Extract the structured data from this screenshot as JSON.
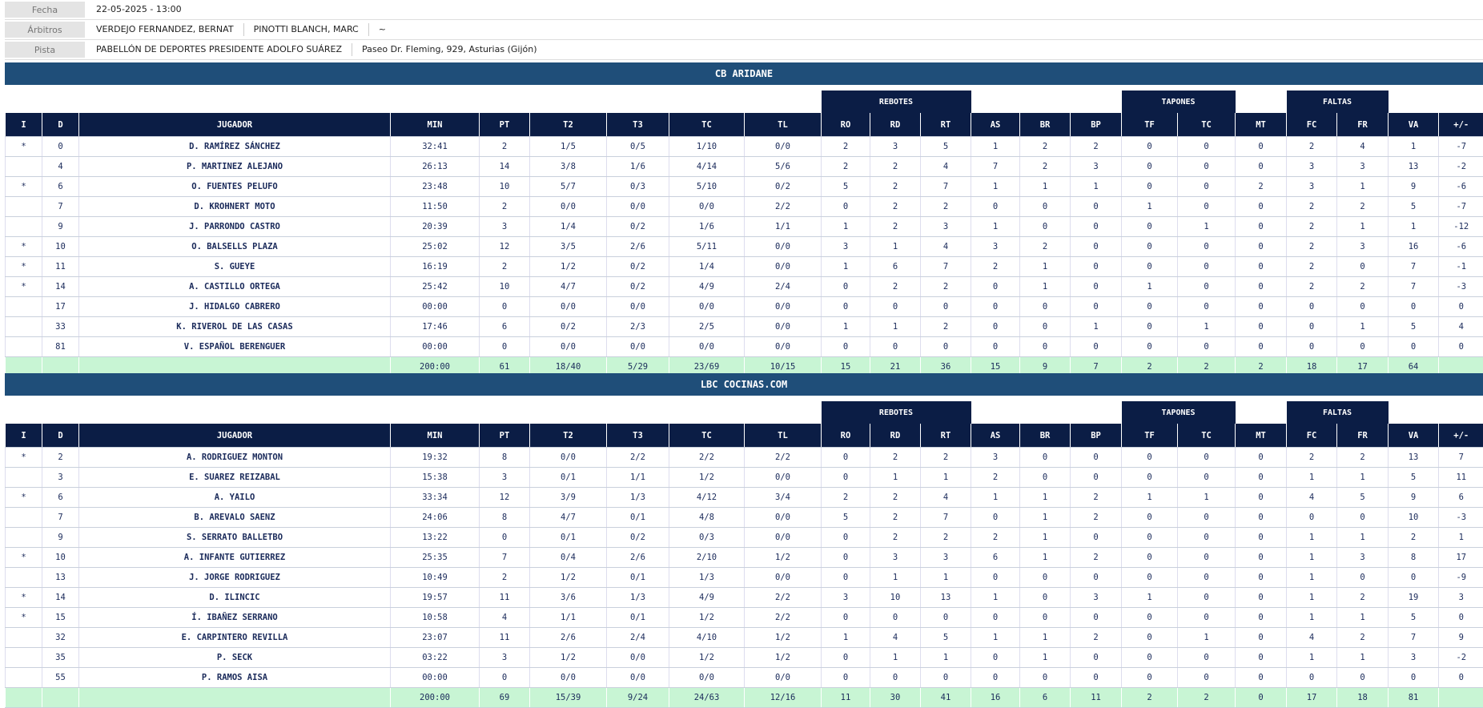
{
  "info": {
    "fecha": {
      "label": "Fecha",
      "values": [
        "22-05-2025 - 13:00"
      ]
    },
    "arbitros": {
      "label": "Árbitros",
      "values": [
        "VERDEJO FERNANDEZ, BERNAT",
        "PINOTTI BLANCH, MARC",
        "~"
      ]
    },
    "pista": {
      "label": "Pista",
      "values": [
        "PABELLÓN DE DEPORTES PRESIDENTE ADOLFO SUÁREZ",
        "Paseo Dr. Fleming, 929, Asturias (Gijón)"
      ]
    }
  },
  "column_groups": [
    "REBOTES",
    "TAPONES",
    "FALTAS"
  ],
  "columns": [
    "I",
    "D",
    "JUGADOR",
    "MIN",
    "PT",
    "T2",
    "T3",
    "TC",
    "TL",
    "RO",
    "RD",
    "RT",
    "AS",
    "BR",
    "BP",
    "TF",
    "TC",
    "MT",
    "FC",
    "FR",
    "VA",
    "+/-"
  ],
  "teams": [
    {
      "name": "CB ARIDANE",
      "rows": [
        [
          "*",
          "0",
          "D. RAMÍREZ SÁNCHEZ",
          "32:41",
          "2",
          "1/5",
          "0/5",
          "1/10",
          "0/0",
          "2",
          "3",
          "5",
          "1",
          "2",
          "2",
          "0",
          "0",
          "0",
          "2",
          "4",
          "1",
          "-7"
        ],
        [
          null,
          "4",
          "P. MARTINEZ ALEJANO",
          "26:13",
          "14",
          "3/8",
          "1/6",
          "4/14",
          "5/6",
          "2",
          "2",
          "4",
          "7",
          "2",
          "3",
          "0",
          "0",
          "0",
          "3",
          "3",
          "13",
          "-2"
        ],
        [
          "*",
          "6",
          "O. FUENTES PELUFO",
          "23:48",
          "10",
          "5/7",
          "0/3",
          "5/10",
          "0/2",
          "5",
          "2",
          "7",
          "1",
          "1",
          "1",
          "0",
          "0",
          "2",
          "3",
          "1",
          "9",
          "-6"
        ],
        [
          null,
          "7",
          "D. KROHNERT MOTO",
          "11:50",
          "2",
          "0/0",
          "0/0",
          "0/0",
          "2/2",
          "0",
          "2",
          "2",
          "0",
          "0",
          "0",
          "1",
          "0",
          "0",
          "2",
          "2",
          "5",
          "-7"
        ],
        [
          null,
          "9",
          "J. PARRONDO CASTRO",
          "20:39",
          "3",
          "1/4",
          "0/2",
          "1/6",
          "1/1",
          "1",
          "2",
          "3",
          "1",
          "0",
          "0",
          "0",
          "1",
          "0",
          "2",
          "1",
          "1",
          "-12"
        ],
        [
          "*",
          "10",
          "O. BALSELLS PLAZA",
          "25:02",
          "12",
          "3/5",
          "2/6",
          "5/11",
          "0/0",
          "3",
          "1",
          "4",
          "3",
          "2",
          "0",
          "0",
          "0",
          "0",
          "2",
          "3",
          "16",
          "-6"
        ],
        [
          "*",
          "11",
          "S. GUEYE",
          "16:19",
          "2",
          "1/2",
          "0/2",
          "1/4",
          "0/0",
          "1",
          "6",
          "7",
          "2",
          "1",
          "0",
          "0",
          "0",
          "0",
          "2",
          "0",
          "7",
          "-1"
        ],
        [
          "*",
          "14",
          "A. CASTILLO ORTEGA",
          "25:42",
          "10",
          "4/7",
          "0/2",
          "4/9",
          "2/4",
          "0",
          "2",
          "2",
          "0",
          "1",
          "0",
          "1",
          "0",
          "0",
          "2",
          "2",
          "7",
          "-3"
        ],
        [
          null,
          "17",
          "J. HIDALGO CABRERO",
          "00:00",
          "0",
          "0/0",
          "0/0",
          "0/0",
          "0/0",
          "0",
          "0",
          "0",
          "0",
          "0",
          "0",
          "0",
          "0",
          "0",
          "0",
          "0",
          "0",
          "0"
        ],
        [
          null,
          "33",
          "K. RIVEROL DE LAS CASAS",
          "17:46",
          "6",
          "0/2",
          "2/3",
          "2/5",
          "0/0",
          "1",
          "1",
          "2",
          "0",
          "0",
          "1",
          "0",
          "1",
          "0",
          "0",
          "1",
          "5",
          "4"
        ],
        [
          null,
          "81",
          "V. ESPAÑOL BERENGUER",
          "00:00",
          "0",
          "0/0",
          "0/0",
          "0/0",
          "0/0",
          "0",
          "0",
          "0",
          "0",
          "0",
          "0",
          "0",
          "0",
          "0",
          "0",
          "0",
          "0",
          "0"
        ]
      ],
      "totals": [
        "200:00",
        "61",
        "18/40",
        "5/29",
        "23/69",
        "10/15",
        "15",
        "21",
        "36",
        "15",
        "9",
        "7",
        "2",
        "2",
        "2",
        "18",
        "17",
        "64"
      ]
    },
    {
      "name": "LBC COCINAS.COM",
      "rows": [
        [
          "*",
          "2",
          "A. RODRIGUEZ MONTON",
          "19:32",
          "8",
          "0/0",
          "2/2",
          "2/2",
          "2/2",
          "0",
          "2",
          "2",
          "3",
          "0",
          "0",
          "0",
          "0",
          "0",
          "2",
          "2",
          "13",
          "7"
        ],
        [
          null,
          "3",
          "E. SUAREZ REIZABAL",
          "15:38",
          "3",
          "0/1",
          "1/1",
          "1/2",
          "0/0",
          "0",
          "1",
          "1",
          "2",
          "0",
          "0",
          "0",
          "0",
          "0",
          "1",
          "1",
          "5",
          "11"
        ],
        [
          "*",
          "6",
          "A. YAILO",
          "33:34",
          "12",
          "3/9",
          "1/3",
          "4/12",
          "3/4",
          "2",
          "2",
          "4",
          "1",
          "1",
          "2",
          "1",
          "1",
          "0",
          "4",
          "5",
          "9",
          "6"
        ],
        [
          null,
          "7",
          "B. AREVALO SAENZ",
          "24:06",
          "8",
          "4/7",
          "0/1",
          "4/8",
          "0/0",
          "5",
          "2",
          "7",
          "0",
          "1",
          "2",
          "0",
          "0",
          "0",
          "0",
          "0",
          "10",
          "-3"
        ],
        [
          null,
          "9",
          "S. SERRATO BALLETBO",
          "13:22",
          "0",
          "0/1",
          "0/2",
          "0/3",
          "0/0",
          "0",
          "2",
          "2",
          "2",
          "1",
          "0",
          "0",
          "0",
          "0",
          "1",
          "1",
          "2",
          "1"
        ],
        [
          "*",
          "10",
          "A. INFANTE GUTIERREZ",
          "25:35",
          "7",
          "0/4",
          "2/6",
          "2/10",
          "1/2",
          "0",
          "3",
          "3",
          "6",
          "1",
          "2",
          "0",
          "0",
          "0",
          "1",
          "3",
          "8",
          "17"
        ],
        [
          null,
          "13",
          "J. JORGE RODRIGUEZ",
          "10:49",
          "2",
          "1/2",
          "0/1",
          "1/3",
          "0/0",
          "0",
          "1",
          "1",
          "0",
          "0",
          "0",
          "0",
          "0",
          "0",
          "1",
          "0",
          "0",
          "-9"
        ],
        [
          "*",
          "14",
          "D. ILINCIC",
          "19:57",
          "11",
          "3/6",
          "1/3",
          "4/9",
          "2/2",
          "3",
          "10",
          "13",
          "1",
          "0",
          "3",
          "1",
          "0",
          "0",
          "1",
          "2",
          "19",
          "3"
        ],
        [
          "*",
          "15",
          "Í. IBAÑEZ SERRANO",
          "10:58",
          "4",
          "1/1",
          "0/1",
          "1/2",
          "2/2",
          "0",
          "0",
          "0",
          "0",
          "0",
          "0",
          "0",
          "0",
          "0",
          "1",
          "1",
          "5",
          "0"
        ],
        [
          null,
          "32",
          "E. CARPINTERO REVILLA",
          "23:07",
          "11",
          "2/6",
          "2/4",
          "4/10",
          "1/2",
          "1",
          "4",
          "5",
          "1",
          "1",
          "2",
          "0",
          "1",
          "0",
          "4",
          "2",
          "7",
          "9"
        ],
        [
          null,
          "35",
          "P. SECK",
          "03:22",
          "3",
          "1/2",
          "0/0",
          "1/2",
          "1/2",
          "0",
          "1",
          "1",
          "0",
          "1",
          "0",
          "0",
          "0",
          "0",
          "1",
          "1",
          "3",
          "-2"
        ],
        [
          null,
          "55",
          "P. RAMOS AISA",
          "00:00",
          "0",
          "0/0",
          "0/0",
          "0/0",
          "0/0",
          "0",
          "0",
          "0",
          "0",
          "0",
          "0",
          "0",
          "0",
          "0",
          "0",
          "0",
          "0",
          "0"
        ]
      ],
      "totals": [
        "200:00",
        "69",
        "15/39",
        "9/24",
        "24/63",
        "12/16",
        "11",
        "30",
        "41",
        "16",
        "6",
        "11",
        "2",
        "2",
        "0",
        "17",
        "18",
        "81"
      ]
    }
  ]
}
